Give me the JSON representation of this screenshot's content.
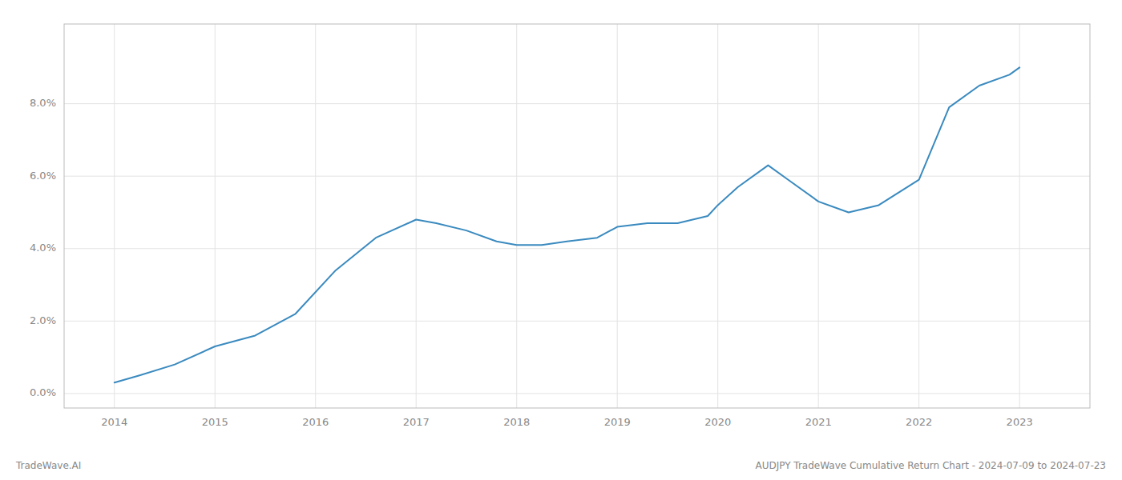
{
  "chart_data": {
    "type": "line",
    "x": [
      2014.0,
      2014.25,
      2014.6,
      2015.0,
      2015.4,
      2015.8,
      2016.2,
      2016.6,
      2017.0,
      2017.2,
      2017.5,
      2017.8,
      2018.0,
      2018.25,
      2018.5,
      2018.8,
      2019.0,
      2019.3,
      2019.6,
      2019.9,
      2020.0,
      2020.2,
      2020.5,
      2020.7,
      2021.0,
      2021.3,
      2021.6,
      2022.0,
      2022.3,
      2022.6,
      2022.9,
      2023.0
    ],
    "values": [
      0.003,
      0.005,
      0.008,
      0.013,
      0.016,
      0.022,
      0.034,
      0.043,
      0.048,
      0.047,
      0.045,
      0.042,
      0.041,
      0.041,
      0.042,
      0.043,
      0.046,
      0.047,
      0.047,
      0.049,
      0.052,
      0.057,
      0.063,
      0.059,
      0.053,
      0.05,
      0.052,
      0.059,
      0.079,
      0.085,
      0.088,
      0.09
    ],
    "color": "#3a8abf",
    "xlim": [
      2013.5,
      2023.7
    ],
    "xticks": [
      2014,
      2015,
      2016,
      2017,
      2018,
      2019,
      2020,
      2021,
      2022,
      2023
    ],
    "ylim": [
      -0.004,
      0.102
    ],
    "yticks": [
      {
        "value": 0.0,
        "label": "0.0%"
      },
      {
        "value": 0.02,
        "label": "2.0%"
      },
      {
        "value": 0.04,
        "label": "4.0%"
      },
      {
        "value": 0.06,
        "label": "6.0%"
      },
      {
        "value": 0.08,
        "label": "8.0%"
      }
    ],
    "grid": true,
    "annotations": [
      "TradeWave.AI",
      "AUDJPY TradeWave Cumulative Return Chart - 2024-07-09 to 2024-07-23"
    ]
  }
}
